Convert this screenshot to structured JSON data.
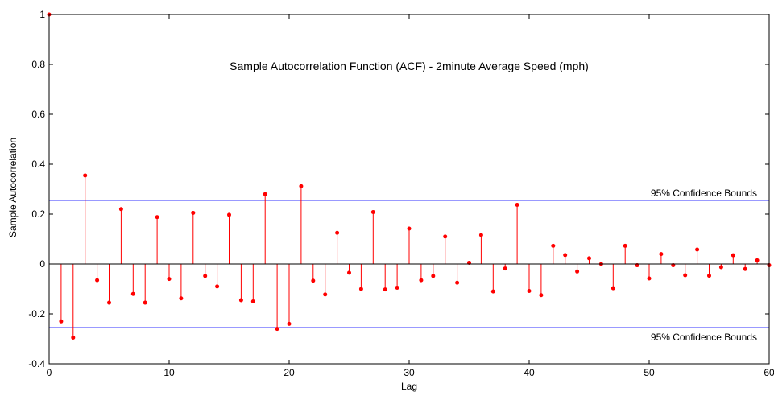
{
  "chart_data": {
    "type": "stem",
    "title": "Sample Autocorrelation Function (ACF) - 2minute Average Speed (mph)",
    "xlabel": "Lag",
    "ylabel": "Sample Autocorrelation",
    "xlim": [
      0,
      60
    ],
    "ylim": [
      -0.4,
      1
    ],
    "xticks": [
      0,
      10,
      20,
      30,
      40,
      50,
      60
    ],
    "yticks": [
      -0.4,
      -0.2,
      0,
      0.2,
      0.4,
      0.6,
      0.8,
      1
    ],
    "ytick_labels": [
      "-0.4",
      "-0.2",
      "0",
      "0.2",
      "0.4",
      "0.6",
      "0.8",
      "1"
    ],
    "grid": false,
    "confidence_bounds": {
      "upper": 0.255,
      "lower": -0.255,
      "upper_label": "95% Confidence Bounds",
      "lower_label": "95% Confidence Bounds",
      "color": "#3333ff"
    },
    "stem_color": "#ff0000",
    "series": [
      {
        "lags": [
          0,
          1,
          2,
          3,
          4,
          5,
          6,
          7,
          8,
          9,
          10,
          11,
          12,
          13,
          14,
          15,
          16,
          17,
          18,
          19,
          20,
          21,
          22,
          23,
          24,
          25,
          26,
          27,
          28,
          29,
          30,
          31,
          32,
          33,
          34,
          35,
          36,
          37,
          38,
          39,
          40,
          41,
          42,
          43,
          44,
          45,
          46,
          47,
          48,
          49,
          50,
          51,
          52,
          53,
          54,
          55,
          56,
          57,
          58,
          59,
          60
        ],
        "values": [
          1.0,
          -0.23,
          -0.295,
          0.355,
          -0.065,
          -0.155,
          0.22,
          -0.12,
          -0.155,
          0.188,
          -0.06,
          -0.138,
          0.205,
          -0.048,
          -0.09,
          0.197,
          -0.145,
          -0.15,
          0.28,
          -0.26,
          -0.24,
          0.312,
          -0.067,
          -0.122,
          0.125,
          -0.035,
          -0.1,
          0.208,
          -0.102,
          -0.095,
          0.142,
          -0.065,
          -0.048,
          0.11,
          -0.075,
          0.005,
          0.116,
          -0.11,
          -0.018,
          0.237,
          -0.108,
          -0.125,
          0.073,
          0.036,
          -0.03,
          0.023,
          0.0,
          -0.097,
          0.073,
          -0.005,
          -0.058,
          0.04,
          -0.005,
          -0.045,
          0.058,
          -0.047,
          -0.013,
          0.035,
          -0.02,
          0.015,
          -0.005
        ]
      }
    ]
  }
}
